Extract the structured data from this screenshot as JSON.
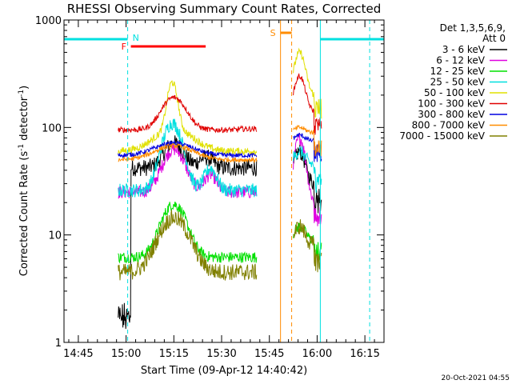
{
  "chart_data": {
    "type": "line",
    "title": "RHESSI Observing Summary Count Rates, Corrected",
    "xlabel": "Start Time (09-Apr-12 14:40:42)",
    "ylabel_main": "Corrected Count Rate (s",
    "ylabel_sup1": "-1",
    "ylabel_mid": " detector",
    "ylabel_sup2": "-1",
    "ylabel_end": ")",
    "ylog": true,
    "xlim_min": [
      -4.5,
      96
    ],
    "ylim": [
      1,
      1000
    ],
    "yticks": [
      {
        "v": 1,
        "label": "1"
      },
      {
        "v": 10,
        "label": "10"
      },
      {
        "v": 100,
        "label": "100"
      },
      {
        "v": 1000,
        "label": "1000"
      }
    ],
    "xticks": [
      {
        "m": 0,
        "label": "14:45"
      },
      {
        "m": 15,
        "label": "15:00"
      },
      {
        "m": 30,
        "label": "15:15"
      },
      {
        "m": 45,
        "label": "15:30"
      },
      {
        "m": 60,
        "label": "15:45"
      },
      {
        "m": 75,
        "label": "16:00"
      },
      {
        "m": 90,
        "label": "16:15"
      }
    ],
    "legend": {
      "header1": "Det 1,3,5,6,9,",
      "header2": "Att 0",
      "placement": "right"
    },
    "series": [
      {
        "name": "3 - 6 keV",
        "color": "#000000"
      },
      {
        "name": "6 - 12 keV",
        "color": "#e000e0"
      },
      {
        "name": "12 - 25 keV",
        "color": "#00e000"
      },
      {
        "name": "25 - 50 keV",
        "color": "#00e0e0"
      },
      {
        "name": "50 - 100 keV",
        "color": "#e0e000"
      },
      {
        "name": "100 - 300 keV",
        "color": "#e00000"
      },
      {
        "name": "300 - 800 keV",
        "color": "#0000e0"
      },
      {
        "name": "800 - 7000 keV",
        "color": "#ff8c00"
      },
      {
        "name": "7000 - 15000 keV",
        "color": "#808000"
      }
    ],
    "flags": [
      {
        "label": "N",
        "color": "#00e0e0"
      },
      {
        "label": "F",
        "color": "#ff0000"
      },
      {
        "label": "S",
        "color": "#ff8c00"
      }
    ]
  },
  "footer": {
    "timestamp": "20-Oct-2021 04:55"
  }
}
